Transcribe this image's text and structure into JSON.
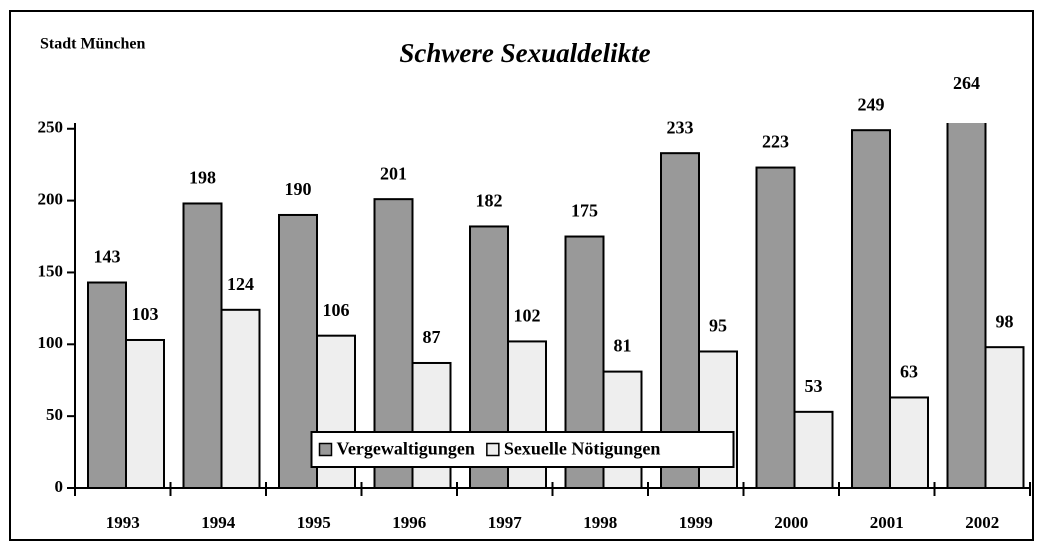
{
  "chart_data": {
    "type": "bar",
    "title": "Schwere Sexualdelikte",
    "subtitle": "Stadt München",
    "categories": [
      "1993",
      "1994",
      "1995",
      "1996",
      "1997",
      "1998",
      "1999",
      "2000",
      "2001",
      "2002"
    ],
    "series": [
      {
        "name": "Vergewaltigungen",
        "color": "#999999",
        "values": [
          143,
          198,
          190,
          201,
          182,
          175,
          233,
          223,
          249,
          264
        ]
      },
      {
        "name": "Sexuelle Nötigungen",
        "color": "#eeeeee",
        "values": [
          103,
          124,
          106,
          87,
          102,
          81,
          95,
          53,
          63,
          98
        ]
      }
    ],
    "ylim": [
      0,
      254
    ],
    "yticks": [
      0,
      50,
      100,
      150,
      200,
      250
    ],
    "grid": false,
    "legend": "lower center"
  }
}
